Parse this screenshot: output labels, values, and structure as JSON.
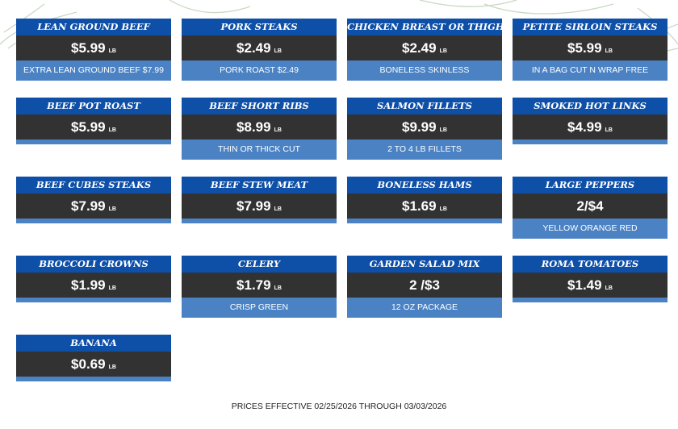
{
  "items": [
    {
      "name": "LEAN GROUND BEEF",
      "price": "$5.99",
      "unit": "LB",
      "desc": "EXTRA LEAN GROUND BEEF $7.99"
    },
    {
      "name": "PORK STEAKS",
      "price": "$2.49",
      "unit": "LB",
      "desc": "PORK ROAST $2.49"
    },
    {
      "name": "CHICKEN BREAST OR THIGHS",
      "price": "$2.49",
      "unit": "LB",
      "desc": "BONELESS SKINLESS"
    },
    {
      "name": "PETITE SIRLOIN STEAKS",
      "price": "$5.99",
      "unit": "LB",
      "desc": "IN A BAG CUT N WRAP FREE"
    },
    {
      "name": "BEEF POT ROAST",
      "price": "$5.99",
      "unit": "LB",
      "desc": ""
    },
    {
      "name": "BEEF SHORT RIBS",
      "price": "$8.99",
      "unit": "LB",
      "desc": "THIN OR THICK CUT"
    },
    {
      "name": "SALMON FILLETS",
      "price": "$9.99",
      "unit": "LB",
      "desc": "2 TO 4 LB FILLETS"
    },
    {
      "name": "SMOKED HOT LINKS",
      "price": "$4.99",
      "unit": "LB",
      "desc": ""
    },
    {
      "name": "BEEF CUBES STEAKS",
      "price": "$7.99",
      "unit": "LB",
      "desc": ""
    },
    {
      "name": "BEEF STEW MEAT",
      "price": "$7.99",
      "unit": "LB",
      "desc": ""
    },
    {
      "name": "BONELESS HAMS",
      "price": "$1.69",
      "unit": "LB",
      "desc": ""
    },
    {
      "name": "LARGE PEPPERS",
      "price": "2/$4",
      "unit": "",
      "desc": "YELLOW ORANGE RED"
    },
    {
      "name": "BROCCOLI CROWNS",
      "price": "$1.99",
      "unit": "LB",
      "desc": ""
    },
    {
      "name": "CELERY",
      "price": "$1.79",
      "unit": "LB",
      "desc": "CRISP GREEN"
    },
    {
      "name": "GARDEN SALAD MIX",
      "price": "2 /$3",
      "unit": "",
      "desc": "12 OZ PACKAGE"
    },
    {
      "name": "ROMA TOMATOES",
      "price": "$1.49",
      "unit": "LB",
      "desc": ""
    },
    {
      "name": "BANANA",
      "price": "$0.69",
      "unit": "LB",
      "desc": ""
    }
  ],
  "footer": "PRICES EFFECTIVE 02/25/2026 THROUGH 03/03/2026",
  "colors": {
    "header": "#0e4fa7",
    "price_band": "#323232",
    "desc_band": "#4b82c4",
    "decoration": "#b8ccb0"
  }
}
